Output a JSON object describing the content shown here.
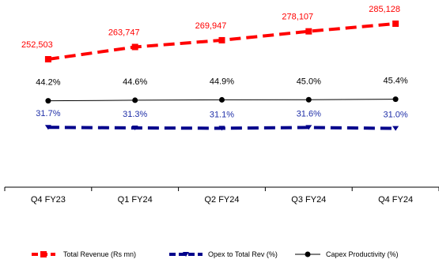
{
  "chart_data": {
    "type": "line",
    "categories": [
      "Q4 FY23",
      "Q1 FY24",
      "Q2 FY24",
      "Q3 FY24",
      "Q4 FY24"
    ],
    "series": [
      {
        "name": "Total Revenue (Rs mn)",
        "values": [
          252503,
          263747,
          269947,
          278107,
          285128
        ],
        "labels": [
          "252,503",
          "263,747",
          "269,947",
          "278,107",
          "285,128"
        ],
        "color": "#ff0000",
        "style": "dashed",
        "marker": "square"
      },
      {
        "name": "Opex to Total Rev (%)",
        "values": [
          31.7,
          31.3,
          31.1,
          31.6,
          31.0
        ],
        "labels": [
          "31.7%",
          "31.3%",
          "31.1%",
          "31.6%",
          "31.0%"
        ],
        "color": "#00008b",
        "style": "dashed",
        "marker": "triangle"
      },
      {
        "name": "Capex Productivity (%)",
        "values": [
          44.2,
          44.6,
          44.9,
          45.0,
          45.4
        ],
        "labels": [
          "44.2%",
          "44.6%",
          "44.9%",
          "45.0%",
          "45.4%"
        ],
        "color": "#000000",
        "style": "solid",
        "marker": "circle"
      }
    ],
    "legend_position": "bottom",
    "grid": false
  }
}
